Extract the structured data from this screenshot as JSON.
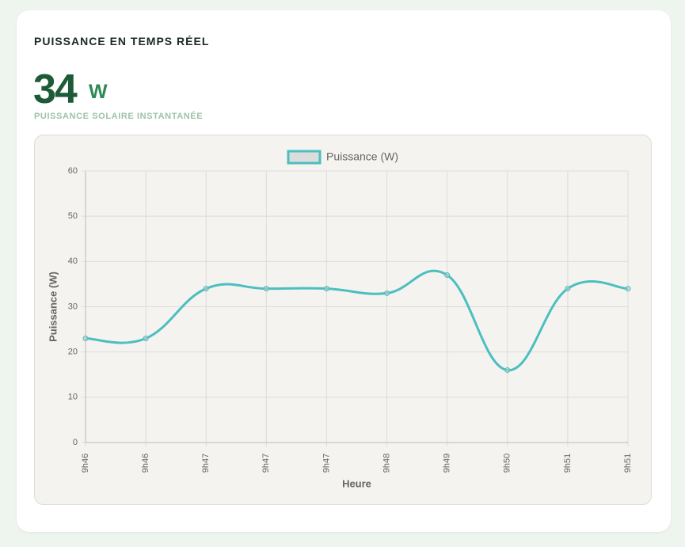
{
  "header": {
    "title": "PUISSANCE EN TEMPS RÉEL",
    "value": "34",
    "unit": "W",
    "subtitle": "PUISSANCE SOLAIRE INSTANTANÉE"
  },
  "chart_data": {
    "type": "line",
    "categories": [
      "9h46",
      "9h46",
      "9h47",
      "9h47",
      "9h47",
      "9h48",
      "9h49",
      "9h50",
      "9h51",
      "9h51"
    ],
    "series": [
      {
        "name": "Puissance (W)",
        "color": "#4bbfbf",
        "values": [
          23,
          23,
          34,
          34,
          34,
          33,
          37,
          16,
          34,
          34
        ]
      }
    ],
    "x_label": "Heure",
    "y_label": "Puissance (W)",
    "ylim": [
      0,
      60
    ],
    "yticks": [
      0,
      10,
      20,
      30,
      40,
      50,
      60
    ],
    "grid": true,
    "legend": "top"
  }
}
